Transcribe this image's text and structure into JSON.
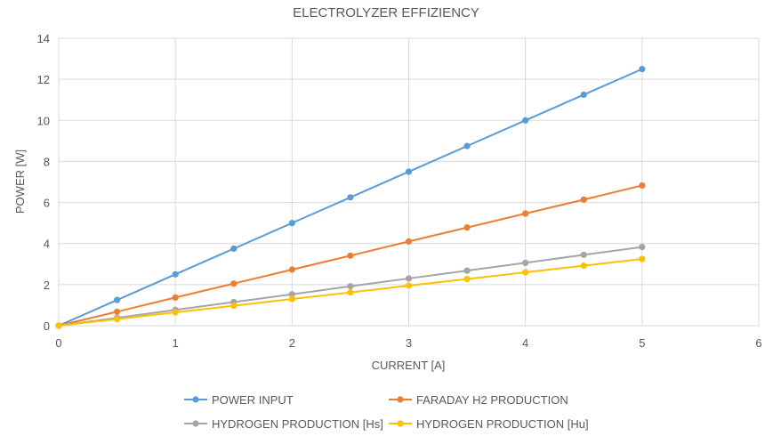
{
  "chart_data": {
    "type": "line",
    "title": "ELECTROLYZER EFFIZIENCY",
    "xlabel": "CURRENT [A]",
    "ylabel": "POWER [W]",
    "xlim": [
      0,
      6
    ],
    "ylim": [
      0,
      14
    ],
    "xticks": [
      "0",
      "1",
      "2",
      "3",
      "4",
      "5",
      "6"
    ],
    "yticks": [
      "0",
      "2",
      "4",
      "6",
      "8",
      "10",
      "12",
      "14"
    ],
    "grid": true,
    "legend_position": "bottom",
    "x": [
      0,
      0.5,
      1,
      1.5,
      2,
      2.5,
      3,
      3.5,
      4,
      4.5,
      5
    ],
    "series": [
      {
        "name": "POWER INPUT",
        "color": "#5b9bd5",
        "values": [
          0,
          1.25,
          2.5,
          3.75,
          5.0,
          6.25,
          7.5,
          8.75,
          10.0,
          11.25,
          12.5
        ]
      },
      {
        "name": "FARADAY H2 PRODUCTION",
        "color": "#ed7d31",
        "values": [
          0,
          0.68,
          1.37,
          2.05,
          2.73,
          3.41,
          4.1,
          4.78,
          5.46,
          6.14,
          6.83
        ]
      },
      {
        "name": "HYDROGEN PRODUCTION [Hs]",
        "color": "#a5a5a5",
        "values": [
          0,
          0.38,
          0.77,
          1.15,
          1.53,
          1.92,
          2.3,
          2.68,
          3.06,
          3.45,
          3.83
        ]
      },
      {
        "name": "HYDROGEN PRODUCTION [Hu]",
        "color": "#ffc000",
        "values": [
          0,
          0.32,
          0.65,
          0.97,
          1.3,
          1.62,
          1.95,
          2.27,
          2.6,
          2.92,
          3.25
        ]
      }
    ]
  }
}
